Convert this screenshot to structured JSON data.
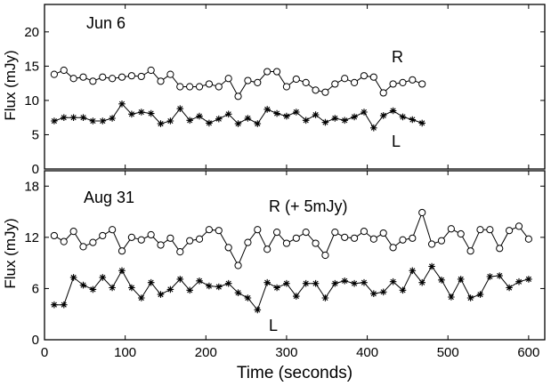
{
  "chart_data": [
    {
      "type": "line",
      "title": "",
      "annotation": "Jun 6",
      "xlabel": "",
      "ylabel": "Flux (mJy)",
      "xlim": [
        0,
        620
      ],
      "ylim": [
        0,
        24
      ],
      "yticks": [
        0,
        5,
        10,
        15,
        20
      ],
      "series": [
        {
          "name": "R",
          "label_text": "R",
          "marker": "circle",
          "x": [
            12,
            24,
            36,
            48,
            60,
            72,
            84,
            96,
            108,
            120,
            132,
            144,
            156,
            168,
            180,
            192,
            204,
            216,
            228,
            240,
            252,
            264,
            276,
            288,
            300,
            312,
            324,
            336,
            348,
            360,
            372,
            384,
            396,
            408,
            420,
            432,
            444,
            456,
            468
          ],
          "y": [
            13.8,
            14.4,
            13.2,
            13.4,
            12.8,
            13.4,
            13.2,
            13.4,
            13.6,
            13.5,
            14.4,
            12.8,
            13.8,
            12.0,
            12.0,
            12.0,
            12.4,
            12.0,
            13.2,
            10.6,
            12.9,
            12.6,
            14.2,
            14.2,
            12.0,
            13.1,
            12.6,
            11.5,
            11.2,
            12.4,
            13.2,
            12.6,
            13.6,
            13.4,
            11.1,
            12.4,
            12.6,
            13.0,
            12.4
          ]
        },
        {
          "name": "L",
          "label_text": "L",
          "marker": "star",
          "x": [
            12,
            24,
            36,
            48,
            60,
            72,
            84,
            96,
            108,
            120,
            132,
            144,
            156,
            168,
            180,
            192,
            204,
            216,
            228,
            240,
            252,
            264,
            276,
            288,
            300,
            312,
            324,
            336,
            348,
            360,
            372,
            384,
            396,
            408,
            420,
            432,
            444,
            456,
            468
          ],
          "y": [
            7.0,
            7.5,
            7.5,
            7.5,
            7.0,
            7.0,
            7.4,
            9.5,
            8.0,
            8.3,
            8.1,
            6.6,
            7.0,
            8.8,
            7.1,
            7.7,
            6.7,
            7.3,
            8.0,
            6.6,
            7.4,
            6.6,
            8.7,
            8.1,
            7.7,
            8.3,
            7.1,
            7.9,
            6.8,
            7.4,
            7.1,
            7.6,
            8.3,
            6.0,
            7.8,
            8.5,
            7.6,
            7.2,
            6.7
          ]
        }
      ]
    },
    {
      "type": "line",
      "title": "",
      "annotation": "Aug 31",
      "xlabel": "Time (seconds)",
      "ylabel": "Flux (mJy)",
      "xlim": [
        0,
        620
      ],
      "ylim": [
        0,
        19.8
      ],
      "xticks": [
        0,
        100,
        200,
        300,
        400,
        500,
        600
      ],
      "yticks": [
        0,
        6,
        12,
        18
      ],
      "series": [
        {
          "name": "R (+ 5mJy)",
          "label_text": "R (+ 5mJy)",
          "marker": "circle",
          "x": [
            12,
            24,
            36,
            48,
            60,
            72,
            84,
            96,
            108,
            120,
            132,
            144,
            156,
            168,
            180,
            192,
            204,
            216,
            228,
            240,
            252,
            264,
            276,
            288,
            300,
            312,
            324,
            336,
            348,
            360,
            372,
            384,
            396,
            408,
            420,
            432,
            444,
            456,
            468,
            480,
            492,
            504,
            516,
            528,
            540,
            552,
            564,
            576,
            588,
            600
          ],
          "y": [
            12.2,
            11.5,
            12.7,
            10.9,
            11.4,
            12.2,
            12.9,
            10.4,
            12.0,
            11.7,
            12.3,
            11.1,
            11.9,
            10.3,
            11.6,
            11.8,
            12.9,
            12.8,
            10.8,
            8.7,
            11.4,
            12.9,
            10.6,
            12.6,
            11.3,
            11.9,
            12.6,
            11.3,
            9.9,
            12.6,
            12.0,
            11.9,
            12.7,
            11.8,
            12.5,
            10.8,
            11.7,
            11.9,
            14.9,
            11.2,
            11.6,
            13.0,
            12.4,
            10.4,
            12.9,
            12.9,
            10.7,
            12.8,
            13.3,
            11.8
          ]
        },
        {
          "name": "L",
          "label_text": "L",
          "marker": "star",
          "x": [
            12,
            24,
            36,
            48,
            60,
            72,
            84,
            96,
            108,
            120,
            132,
            144,
            156,
            168,
            180,
            192,
            204,
            216,
            228,
            240,
            252,
            264,
            276,
            288,
            300,
            312,
            324,
            336,
            348,
            360,
            372,
            384,
            396,
            408,
            420,
            432,
            444,
            456,
            468,
            480,
            492,
            504,
            516,
            528,
            540,
            552,
            564,
            576,
            588,
            600
          ],
          "y": [
            4.1,
            4.1,
            7.3,
            6.4,
            5.9,
            7.3,
            6.1,
            8.1,
            6.1,
            4.9,
            6.7,
            5.3,
            5.9,
            7.1,
            5.8,
            6.9,
            6.3,
            6.2,
            6.6,
            5.5,
            4.9,
            3.5,
            6.7,
            6.1,
            6.6,
            5.1,
            6.6,
            6.6,
            4.9,
            6.6,
            6.9,
            6.6,
            6.7,
            5.4,
            5.6,
            6.8,
            5.8,
            8.1,
            6.7,
            8.6,
            7.0,
            5.0,
            7.1,
            4.9,
            5.3,
            7.4,
            7.5,
            6.1,
            6.8,
            7.1
          ]
        }
      ]
    }
  ]
}
